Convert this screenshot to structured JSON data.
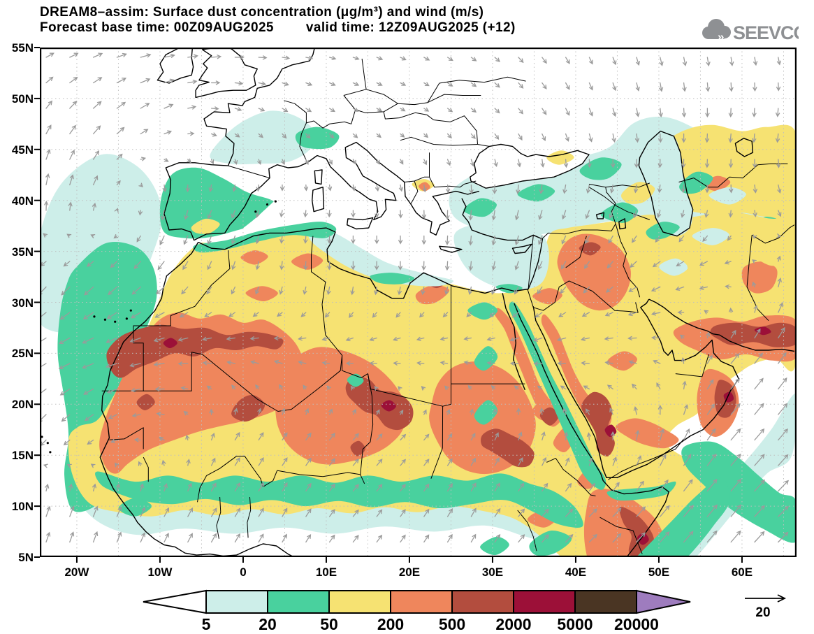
{
  "title": {
    "line1": "DREAM8–assim: Surface dust concentration (μg/m³) and wind (m/s)",
    "line2_forecast": "Forecast base time: 00Z09AUG2025",
    "line2_valid": "valid time: 12Z09AUG2025 (+12)"
  },
  "logo": {
    "name": "SEEVCCC"
  },
  "axes": {
    "lat": [
      "55N",
      "50N",
      "45N",
      "40N",
      "35N",
      "30N",
      "25N",
      "20N",
      "15N",
      "10N",
      "5N"
    ],
    "lat_deg": [
      55,
      50,
      45,
      40,
      35,
      30,
      25,
      20,
      15,
      10,
      5
    ],
    "lon": [
      "20W",
      "10W",
      "0",
      "10E",
      "20E",
      "30E",
      "40E",
      "50E",
      "60E"
    ],
    "lon_deg": [
      -20,
      -10,
      0,
      10,
      20,
      30,
      40,
      50,
      60
    ]
  },
  "colorbar": {
    "labels": [
      "5",
      "20",
      "50",
      "200",
      "500",
      "2000",
      "5000",
      "20000"
    ],
    "colors": [
      "#ffffff",
      "#cdeee9",
      "#49d19e",
      "#f6e272",
      "#ef865c",
      "#b34d3e",
      "#9c1038",
      "#4a3523",
      "#9e7cbe"
    ]
  },
  "wind_reference": {
    "label": "20"
  },
  "map_colors": {
    "pale": "#cdeee9",
    "teal": "#49d19e",
    "yellow": "#f6e272",
    "orange": "#ef865c",
    "brick": "#b34d3e",
    "maroon": "#9c1038",
    "sea_white": "#ffffff",
    "coast": "#000000",
    "arrow": "#9b9b9b",
    "grid": "#bfbfbf"
  },
  "wind_field": {
    "lats": [
      55,
      47.5,
      40,
      32.5,
      25,
      17.5,
      10,
      5
    ],
    "lons": [
      -25,
      -17.5,
      -10,
      -2.5,
      5,
      12.5,
      20,
      27.5,
      35,
      42.5,
      50,
      57.5,
      65
    ],
    "angles": [
      [
        25,
        20,
        10,
        5,
        -5,
        -15,
        -25,
        -35,
        -50,
        -65,
        -75,
        -80,
        -75
      ],
      [
        60,
        45,
        30,
        -20,
        -40,
        -35,
        -30,
        -40,
        -55,
        -70,
        -85,
        -95,
        -100
      ],
      [
        85,
        70,
        -95,
        -115,
        -100,
        -90,
        -85,
        -95,
        -105,
        -110,
        -100,
        -90,
        -70
      ],
      [
        -130,
        -135,
        -135,
        -110,
        -95,
        -90,
        -92,
        -95,
        -115,
        -130,
        -150,
        -165,
        75
      ],
      [
        -150,
        -160,
        -170,
        178,
        170,
        -175,
        -178,
        175,
        -170,
        -178,
        170,
        50,
        55
      ],
      [
        -130,
        -140,
        170,
        60,
        55,
        50,
        45,
        60,
        75,
        110,
        80,
        50,
        50
      ],
      [
        70,
        68,
        62,
        58,
        60,
        50,
        55,
        60,
        50,
        45,
        50,
        50,
        45
      ],
      [
        72,
        70,
        65,
        60,
        60,
        52,
        55,
        60,
        48,
        45,
        48,
        50,
        45
      ]
    ],
    "mags": [
      [
        0.7,
        0.8,
        0.9,
        0.8,
        0.6,
        0.5,
        0.5,
        0.5,
        0.6,
        0.6,
        0.7,
        0.7,
        0.6
      ],
      [
        0.8,
        0.9,
        0.8,
        0.5,
        0.5,
        0.5,
        0.4,
        0.5,
        0.6,
        0.7,
        0.7,
        0.7,
        0.7
      ],
      [
        1.0,
        0.8,
        0.8,
        0.7,
        0.5,
        0.5,
        0.6,
        0.8,
        0.8,
        0.7,
        0.6,
        0.6,
        0.7
      ],
      [
        0.9,
        1.0,
        0.9,
        0.7,
        0.7,
        0.7,
        0.7,
        0.7,
        0.7,
        0.7,
        0.8,
        0.8,
        0.8
      ],
      [
        1.0,
        1.0,
        0.9,
        0.8,
        0.8,
        0.7,
        0.7,
        0.7,
        0.8,
        0.7,
        0.7,
        1.0,
        1.1
      ],
      [
        0.9,
        0.8,
        0.6,
        0.7,
        0.7,
        0.7,
        0.6,
        0.6,
        0.7,
        0.6,
        0.9,
        1.2,
        1.2
      ],
      [
        0.9,
        0.9,
        0.8,
        0.8,
        0.8,
        0.7,
        0.7,
        0.8,
        0.8,
        0.9,
        1.2,
        1.3,
        1.2
      ],
      [
        0.8,
        0.9,
        0.8,
        0.8,
        0.7,
        0.7,
        0.7,
        0.7,
        0.8,
        0.9,
        1.1,
        1.2,
        1.1
      ]
    ]
  }
}
